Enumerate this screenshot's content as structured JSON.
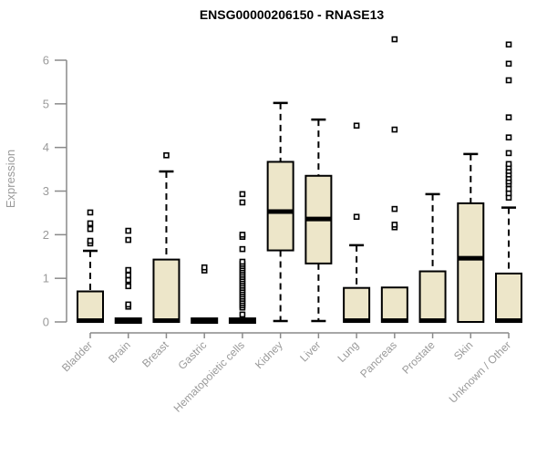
{
  "chart_data": {
    "type": "boxplot",
    "title": "ENSG00000206150 - RNASE13",
    "ylabel": "Expression",
    "xlabel": "",
    "ylim": [
      0,
      6.6
    ],
    "yticks": [
      0,
      1,
      2,
      3,
      4,
      5,
      6
    ],
    "grid": false,
    "legend": "none",
    "categories": [
      "Bladder",
      "Brain",
      "Breast",
      "Gastric",
      "Hematopoietic cells",
      "Kidney",
      "Liver",
      "Lung",
      "Pancreas",
      "Prostate",
      "Skin",
      "Unknown / Other"
    ],
    "boxes": [
      {
        "name": "Bladder",
        "whisker_low": 0,
        "q1": 0,
        "median": 0.03,
        "q3": 0.7,
        "whisker_high": 1.63,
        "outliers": [
          1.8,
          1.86,
          2.13,
          2.26,
          2.51
        ]
      },
      {
        "name": "Brain",
        "whisker_low": 0,
        "q1": 0,
        "median": 0.03,
        "q3": 0.06,
        "whisker_high": 0.06,
        "outliers": [
          0.35,
          0.4,
          0.82,
          0.96,
          1.07,
          1.19,
          1.88,
          2.09
        ]
      },
      {
        "name": "Breast",
        "whisker_low": 0,
        "q1": 0,
        "median": 0.03,
        "q3": 1.43,
        "whisker_high": 3.45,
        "outliers": [
          3.82
        ]
      },
      {
        "name": "Gastric",
        "whisker_low": 0,
        "q1": 0,
        "median": 0.03,
        "q3": 0.06,
        "whisker_high": 0.06,
        "outliers": [
          1.18,
          1.25
        ]
      },
      {
        "name": "Hematopoietic cells",
        "whisker_low": 0,
        "q1": 0,
        "median": 0.03,
        "q3": 0.06,
        "whisker_high": 0.06,
        "outliers": [
          0.17,
          0.33,
          0.38,
          0.43,
          0.48,
          0.53,
          0.58,
          0.63,
          0.68,
          0.73,
          0.78,
          0.83,
          0.88,
          0.93,
          0.98,
          1.03,
          1.08,
          1.13,
          1.18,
          1.23,
          1.28,
          1.33,
          1.38,
          1.67,
          1.95,
          2.0,
          2.74,
          2.93
        ]
      },
      {
        "name": "Kidney",
        "whisker_low": 0.02,
        "q1": 1.64,
        "median": 2.53,
        "q3": 3.67,
        "whisker_high": 5.02,
        "outliers": []
      },
      {
        "name": "Liver",
        "whisker_low": 0.02,
        "q1": 1.34,
        "median": 2.36,
        "q3": 3.35,
        "whisker_high": 4.64,
        "outliers": []
      },
      {
        "name": "Lung",
        "whisker_low": 0,
        "q1": 0,
        "median": 0.03,
        "q3": 0.78,
        "whisker_high": 1.76,
        "outliers": [
          2.41,
          4.5
        ]
      },
      {
        "name": "Pancreas",
        "whisker_low": 0,
        "q1": 0,
        "median": 0.03,
        "q3": 0.79,
        "whisker_high": 0.79,
        "outliers": [
          2.17,
          2.23,
          2.59,
          4.41,
          6.48
        ]
      },
      {
        "name": "Prostate",
        "whisker_low": 0,
        "q1": 0,
        "median": 0.03,
        "q3": 1.16,
        "whisker_high": 2.93,
        "outliers": []
      },
      {
        "name": "Skin",
        "whisker_low": 0,
        "q1": 0,
        "median": 1.46,
        "q3": 2.72,
        "whisker_high": 3.85,
        "outliers": []
      },
      {
        "name": "Unknown / Other",
        "whisker_low": 0,
        "q1": 0,
        "median": 0.03,
        "q3": 1.11,
        "whisker_high": 2.62,
        "outliers": [
          2.85,
          2.95,
          3.05,
          3.16,
          3.22,
          3.3,
          3.38,
          3.46,
          3.54,
          3.62,
          3.87,
          4.23,
          4.69,
          5.54,
          5.92,
          6.36
        ]
      }
    ],
    "colors": {
      "box_fill": "#EDE6C9",
      "box_border": "#000000",
      "median": "#000000",
      "whisker": "#000000",
      "outlier_fill": "#ffffff",
      "outlier_border": "#000000",
      "axis": "#8A8A8A",
      "tick_text": "#9A9A9A",
      "title_text": "#000000"
    }
  }
}
